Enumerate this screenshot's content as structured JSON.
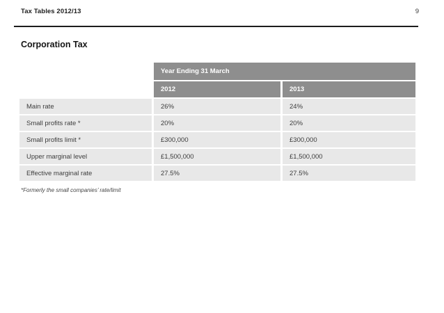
{
  "header": {
    "title": "Tax Tables 2012/13",
    "page_number": "9"
  },
  "section_title": "Corporation Tax",
  "table": {
    "group_header": "Year Ending 31 March",
    "columns": [
      "2012",
      "2013"
    ],
    "rows": [
      {
        "label": "Main rate",
        "values": [
          "26%",
          "24%"
        ]
      },
      {
        "label": "Small profits rate *",
        "values": [
          "20%",
          "20%"
        ]
      },
      {
        "label": "Small profits limit *",
        "values": [
          "£300,000",
          "£300,000"
        ]
      },
      {
        "label": "Upper marginal level",
        "values": [
          "£1,500,000",
          "£1,500,000"
        ]
      },
      {
        "label": "Effective marginal rate",
        "values": [
          "27.5%",
          "27.5%"
        ]
      }
    ]
  },
  "footnote": "*Formerly the small companies’ rate/limit",
  "colors": {
    "header_bg": "#8e8e8e",
    "header_text": "#ffffff",
    "row_bg": "#e8e8e8",
    "body_text": "#3d3d3d",
    "rule": "#1c1c1c"
  }
}
